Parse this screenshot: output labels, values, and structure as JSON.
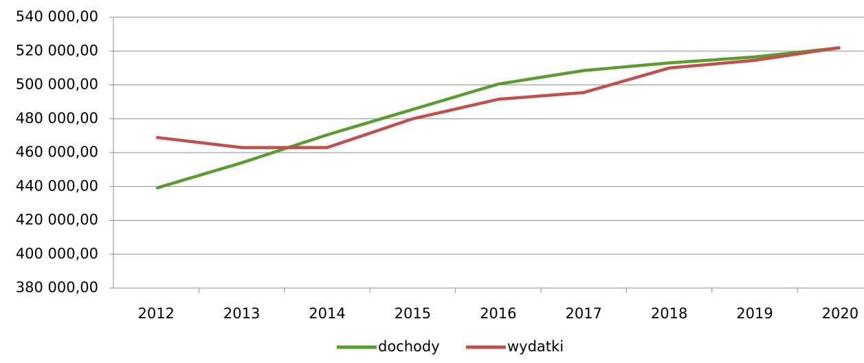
{
  "chart_data": {
    "type": "line",
    "categories": [
      "2012",
      "2013",
      "2014",
      "2015",
      "2016",
      "2017",
      "2018",
      "2019",
      "2020"
    ],
    "series": [
      {
        "name": "dochody",
        "color": "#5a9c2f",
        "values": [
          439000,
          454000,
          470500,
          485500,
          500500,
          508500,
          513000,
          516500,
          522000
        ]
      },
      {
        "name": "wydatki",
        "color": "#c0504d",
        "values": [
          469000,
          463000,
          463000,
          480000,
          491500,
          495500,
          510000,
          514500,
          522000
        ]
      }
    ],
    "ylim": [
      380000,
      540000
    ],
    "yticks": [
      {
        "value": 380000,
        "label": "380 000,00"
      },
      {
        "value": 400000,
        "label": "400 000,00"
      },
      {
        "value": 420000,
        "label": "420 000,00"
      },
      {
        "value": 440000,
        "label": "440 000,00"
      },
      {
        "value": 460000,
        "label": "460 000,00"
      },
      {
        "value": 480000,
        "label": "480 000,00"
      },
      {
        "value": 500000,
        "label": "500 000,00"
      },
      {
        "value": 520000,
        "label": "520 000,00"
      },
      {
        "value": 540000,
        "label": "540 000,00"
      }
    ],
    "grid": true,
    "legend": "bottom"
  }
}
